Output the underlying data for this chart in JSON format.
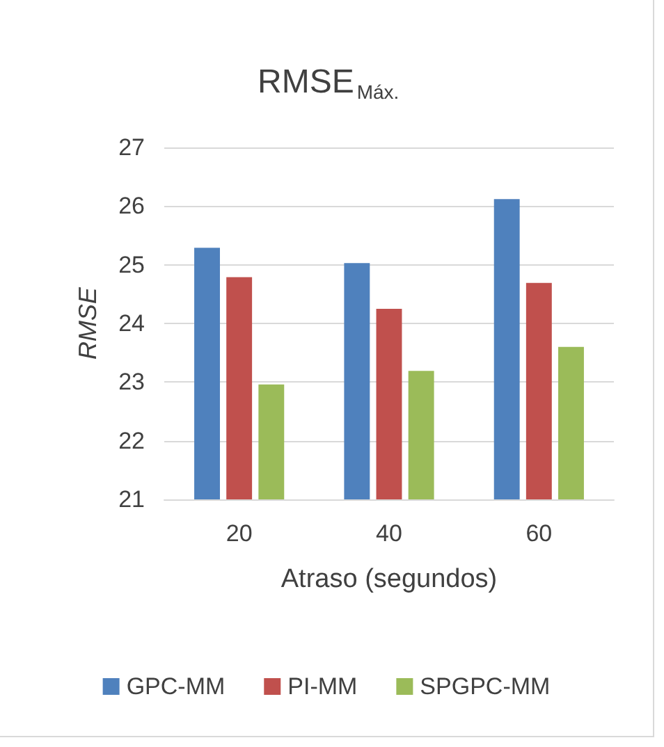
{
  "chart_data": {
    "type": "bar",
    "title": "RMSE$_{Máx.}$",
    "xlabel": "Atraso (segundos)",
    "ylabel": "RMSE",
    "categories": [
      "20",
      "40",
      "60"
    ],
    "series": [
      {
        "name": "GPC-MM",
        "color": "#4f81bd",
        "values": [
          25.29,
          25.03,
          26.12
        ]
      },
      {
        "name": "PI-MM",
        "color": "#c0504d",
        "values": [
          24.79,
          24.25,
          24.69
        ]
      },
      {
        "name": "SPGPC-MM",
        "color": "#9bbb59",
        "values": [
          22.96,
          23.19,
          23.6
        ]
      }
    ],
    "ylim": [
      21,
      27
    ],
    "yticks": [
      21,
      22,
      23,
      24,
      25,
      26,
      27
    ],
    "grid": "y",
    "legend": "bottom"
  }
}
